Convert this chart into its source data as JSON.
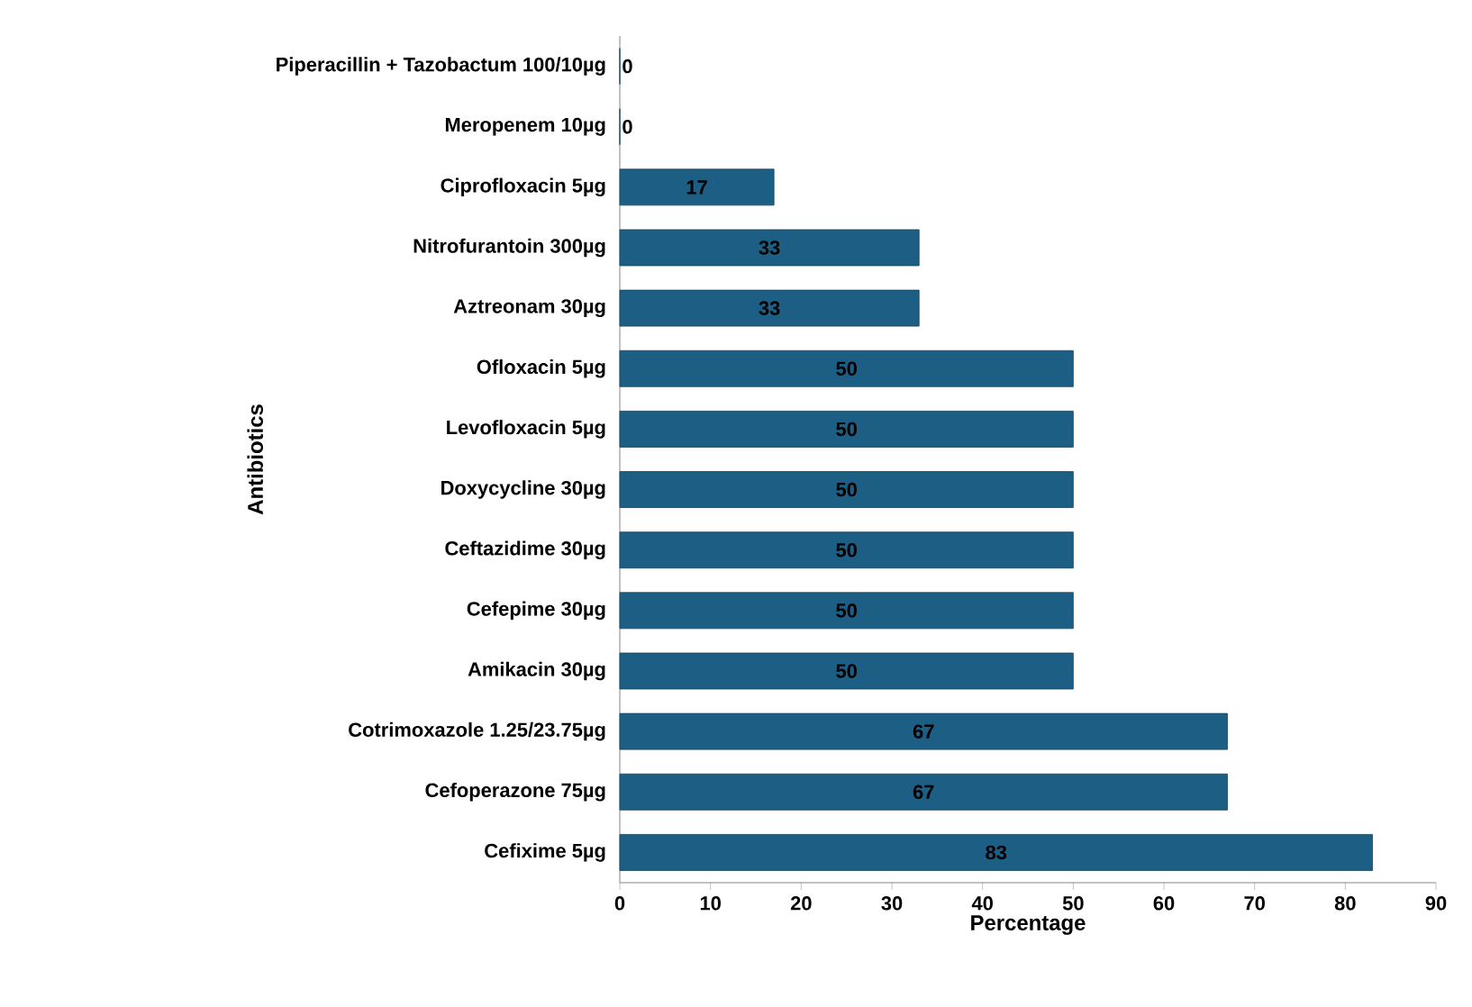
{
  "chart_data": {
    "type": "bar",
    "orientation": "horizontal",
    "xlabel": "Percentage",
    "ylabel": "Antibiotics",
    "categories": [
      "Piperacillin + Tazobactum 100/10µg",
      "Meropenem 10µg",
      "Ciprofloxacin 5µg",
      "Nitrofurantoin 300µg",
      "Aztreonam 30µg",
      "Ofloxacin 5µg",
      "Levofloxacin 5µg",
      "Doxycycline 30µg",
      "Ceftazidime 30µg",
      "Cefepime 30µg",
      "Amikacin 30µg",
      "Cotrimoxazole 1.25/23.75µg",
      "Cefoperazone 75µg",
      "Cefixime 5µg"
    ],
    "values": [
      0,
      0,
      17,
      33,
      33,
      50,
      50,
      50,
      50,
      50,
      50,
      67,
      67,
      83
    ],
    "color": "#1d5f84",
    "xlim": [
      0,
      90
    ],
    "xticks": [
      0,
      10,
      20,
      30,
      40,
      50,
      60,
      70,
      80,
      90
    ],
    "data_labels": true
  }
}
